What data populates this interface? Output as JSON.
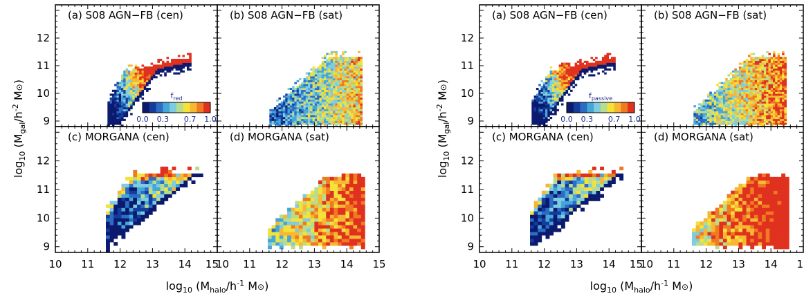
{
  "colors": {
    "colormap": [
      "#0b1a6e",
      "#143c9c",
      "#2b6cc4",
      "#45a6d8",
      "#7fcbe0",
      "#b8dc8c",
      "#f4e23a",
      "#f7b733",
      "#f07a22",
      "#e0301e"
    ],
    "frame": "#000000"
  },
  "chart_data": [
    {
      "figure": "left",
      "type": "heatmap",
      "xlabel": {
        "main": "log",
        "sub": "10",
        "open": " (M",
        "sub2": "halo",
        "rest": "/h",
        "sup": "-1",
        "end": " M",
        "sun": "⊙",
        "close": ")"
      },
      "ylabel": {
        "main": "log",
        "sub": "10",
        "open": " (M",
        "sub2": "gal",
        "rest": "/h",
        "sup": "-2",
        "end": " M",
        "sun": "⊙",
        "close": ")"
      },
      "xlim": [
        10,
        15
      ],
      "ylim": [
        8.8,
        13.2
      ],
      "xticks_left": [
        "10",
        "11",
        "12",
        "13",
        "14",
        "15"
      ],
      "xticks_right": [
        "10",
        "11",
        "12",
        "13",
        "14",
        "15"
      ],
      "yticks": [
        "9",
        "10",
        "11",
        "12"
      ],
      "colorbar": {
        "label": "f",
        "label_sub": "red",
        "ticks": [
          "0.0",
          "0.3",
          "0.7",
          "1.0"
        ],
        "range": [
          0,
          1
        ]
      },
      "panels": [
        {
          "title": "(a) S08 AGN−FB (cen)",
          "model": "S08",
          "population": "cen"
        },
        {
          "title": "(b) S08 AGN−FB (sat)",
          "model": "S08",
          "population": "sat"
        },
        {
          "title": "(c) MORGANA (cen)",
          "model": "MORGANA",
          "population": "cen"
        },
        {
          "title": "(d) MORGANA (sat)",
          "model": "MORGANA",
          "population": "sat"
        }
      ]
    },
    {
      "figure": "right",
      "type": "heatmap",
      "xlabel": {
        "main": "log",
        "sub": "10",
        "open": " (M",
        "sub2": "halo",
        "rest": "/h",
        "sup": "-1",
        "end": " M",
        "sun": "⊙",
        "close": ")"
      },
      "ylabel": {
        "main": "log",
        "sub": "10",
        "open": " (M",
        "sub2": "gal",
        "rest": "/h",
        "sup": "-2",
        "end": " M",
        "sun": "⊙",
        "close": ")"
      },
      "xlim": [
        10,
        15
      ],
      "ylim": [
        8.8,
        13.2
      ],
      "xticks_left": [
        "10",
        "11",
        "12",
        "13",
        "14",
        "15"
      ],
      "xticks_right": [
        "10",
        "11",
        "12",
        "13",
        "14",
        "15"
      ],
      "yticks": [
        "9",
        "10",
        "11",
        "12"
      ],
      "colorbar": {
        "label": "f",
        "label_sub": "passive",
        "ticks": [
          "0.0",
          "0.3",
          "0.7",
          "1.0"
        ],
        "range": [
          0,
          1
        ]
      },
      "panels": [
        {
          "title": "(a) S08 AGN−FB (cen)",
          "model": "S08",
          "population": "cen"
        },
        {
          "title": "(b) S08 AGN−FB (sat)",
          "model": "S08",
          "population": "sat"
        },
        {
          "title": "(c) MORGANA (cen)",
          "model": "MORGANA",
          "population": "cen"
        },
        {
          "title": "(d) MORGANA (sat)",
          "model": "MORGANA",
          "population": "sat"
        }
      ]
    }
  ]
}
